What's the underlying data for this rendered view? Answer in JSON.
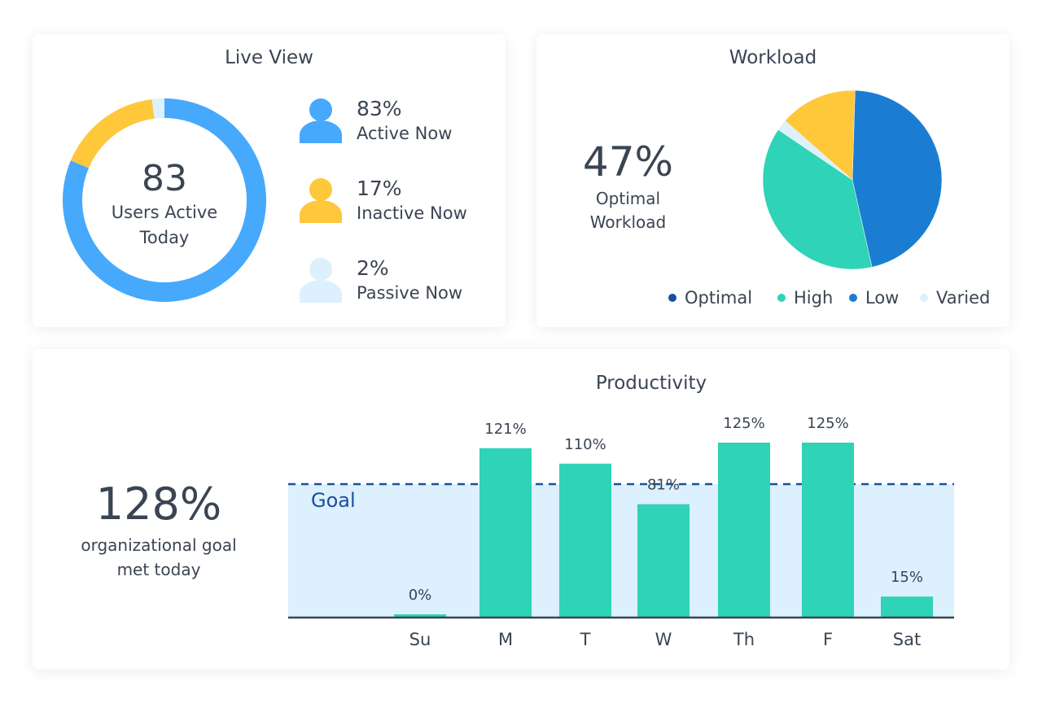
{
  "live_view": {
    "title": "Live View",
    "total": "83",
    "caption_line1": "Users Active",
    "caption_line2": "Today",
    "segments": [
      {
        "label": "Active Now",
        "percent_text": "83%",
        "value": 83,
        "color": "#46a9fc"
      },
      {
        "label": "Inactive Now",
        "percent_text": "17%",
        "value": 17,
        "color": "#ffc73a"
      },
      {
        "label": "Passive Now",
        "percent_text": "2%",
        "value": 2,
        "color": "#dcf0fd"
      }
    ]
  },
  "workload": {
    "title": "Workload",
    "headline": "47%",
    "caption_line1": "Optimal",
    "caption_line2": "Workload",
    "slices": [
      {
        "label": "Low",
        "value": 46,
        "color": "#1a7dd1"
      },
      {
        "label": "High",
        "value": 38,
        "color": "#2fd3b7"
      },
      {
        "label": "Varied",
        "value": 2,
        "color": "#dcf0fd"
      },
      {
        "label": "",
        "value": 14,
        "color": "#ffc73a"
      }
    ],
    "legend": [
      {
        "label": "Optimal",
        "color": "#1a4f9c"
      },
      {
        "label": "High",
        "color": "#2fd3b7"
      },
      {
        "label": "Low",
        "color": "#1a7dd1"
      },
      {
        "label": "Varied",
        "color": "#dcf0fd"
      }
    ]
  },
  "productivity": {
    "title": "Productivity",
    "headline": "128%",
    "caption_line1": "organizational goal",
    "caption_line2": "met today",
    "goal_label": "Goal"
  },
  "chart_data": {
    "type": "bar",
    "title": "Productivity",
    "categories": [
      "Su",
      "M",
      "T",
      "W",
      "Th",
      "F",
      "Sat"
    ],
    "values": [
      0,
      121,
      110,
      81,
      125,
      125,
      15
    ],
    "value_labels": [
      "0%",
      "121%",
      "110%",
      "81%",
      "125%",
      "125%",
      "15%"
    ],
    "goal": 100,
    "goal_label": "Goal",
    "bar_color": "#2fd3b7",
    "goal_band_color": "#dcf0fd",
    "goal_line_color": "#1a4f9c",
    "grid": false
  }
}
